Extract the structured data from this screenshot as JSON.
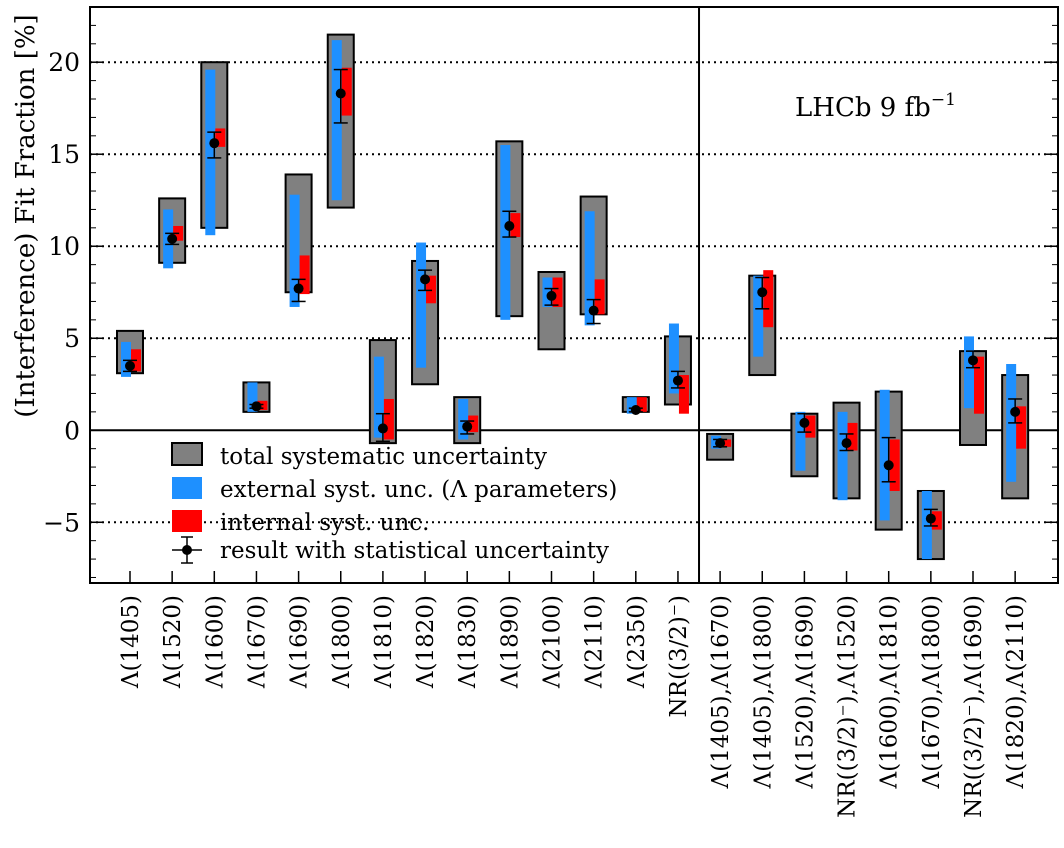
{
  "chart_data": {
    "type": "errorbar-box",
    "ylabel": "(Interference) Fit Fraction [%]",
    "ylim": [
      -8.3,
      23
    ],
    "yticks": [
      -5,
      0,
      5,
      10,
      15,
      20
    ],
    "ytick_labels": [
      "−5",
      "0",
      "5",
      "10",
      "15",
      "20"
    ],
    "grid_y": [
      -5,
      5,
      10,
      15,
      20
    ],
    "zero_line": 0,
    "separator_after_index": 13,
    "annotation": {
      "text": "LHCb 9 fb",
      "sup": "−1"
    },
    "legend": [
      {
        "key": "total",
        "label": "total systematic uncertainty",
        "color": "#808080"
      },
      {
        "key": "external",
        "label": "external syst. unc. (Λ parameters)",
        "color": "#1e90ff"
      },
      {
        "key": "internal",
        "label": "internal syst. unc.",
        "color": "#ff0000"
      },
      {
        "key": "stat",
        "label": "result with statistical uncertainty",
        "color": "#000000"
      }
    ],
    "colors": {
      "total": "#808080",
      "external": "#1e90ff",
      "internal": "#ff0000",
      "point": "#000000"
    },
    "categories": [
      {
        "label": "Λ(1405)",
        "value": 3.5,
        "stat": [
          3.2,
          3.8
        ],
        "total": [
          3.1,
          5.4
        ],
        "external": [
          2.9,
          4.8
        ],
        "internal": [
          3.2,
          4.4
        ]
      },
      {
        "label": "Λ(1520)",
        "value": 10.4,
        "stat": [
          10.1,
          10.7
        ],
        "total": [
          9.1,
          12.6
        ],
        "external": [
          8.8,
          12.0
        ],
        "internal": [
          10.3,
          11.1
        ]
      },
      {
        "label": "Λ(1600)",
        "value": 15.6,
        "stat": [
          14.8,
          16.2
        ],
        "total": [
          11.0,
          20.0
        ],
        "external": [
          10.6,
          19.6
        ],
        "internal": [
          15.4,
          16.4
        ]
      },
      {
        "label": "Λ(1670)",
        "value": 1.3,
        "stat": [
          1.2,
          1.4
        ],
        "total": [
          1.0,
          2.6
        ],
        "external": [
          1.0,
          2.6
        ],
        "internal": [
          1.1,
          1.6
        ]
      },
      {
        "label": "Λ(1690)",
        "value": 7.7,
        "stat": [
          7.0,
          8.2
        ],
        "total": [
          7.5,
          13.9
        ],
        "external": [
          6.7,
          12.8
        ],
        "internal": [
          7.4,
          9.5
        ]
      },
      {
        "label": "Λ(1800)",
        "value": 18.3,
        "stat": [
          16.7,
          19.6
        ],
        "total": [
          12.1,
          21.5
        ],
        "external": [
          12.5,
          21.2
        ],
        "internal": [
          17.1,
          19.7
        ]
      },
      {
        "label": "Λ(1810)",
        "value": 0.1,
        "stat": [
          -0.6,
          0.9
        ],
        "total": [
          -0.7,
          4.9
        ],
        "external": [
          -0.4,
          4.0
        ],
        "internal": [
          -0.5,
          1.7
        ]
      },
      {
        "label": "Λ(1820)",
        "value": 8.2,
        "stat": [
          7.6,
          8.7
        ],
        "total": [
          2.5,
          9.2
        ],
        "external": [
          3.4,
          10.2
        ],
        "internal": [
          6.9,
          8.4
        ]
      },
      {
        "label": "Λ(1830)",
        "value": 0.2,
        "stat": [
          -0.2,
          0.5
        ],
        "total": [
          -0.7,
          1.8
        ],
        "external": [
          -0.5,
          1.7
        ],
        "internal": [
          -0.1,
          0.8
        ]
      },
      {
        "label": "Λ(1890)",
        "value": 11.1,
        "stat": [
          10.5,
          11.9
        ],
        "total": [
          6.2,
          15.7
        ],
        "external": [
          6.0,
          15.5
        ],
        "internal": [
          10.5,
          11.8
        ]
      },
      {
        "label": "Λ(2100)",
        "value": 7.3,
        "stat": [
          6.8,
          7.7
        ],
        "total": [
          4.4,
          8.6
        ],
        "external": [
          6.7,
          8.3
        ],
        "internal": [
          6.7,
          8.3
        ]
      },
      {
        "label": "Λ(2110)",
        "value": 6.5,
        "stat": [
          5.8,
          7.1
        ],
        "total": [
          6.3,
          12.7
        ],
        "external": [
          5.7,
          11.9
        ],
        "internal": [
          6.3,
          8.2
        ]
      },
      {
        "label": "Λ(2350)",
        "value": 1.1,
        "stat": [
          1.0,
          1.2
        ],
        "total": [
          1.0,
          1.8
        ],
        "external": [
          0.9,
          1.8
        ],
        "internal": [
          1.0,
          1.8
        ]
      },
      {
        "label": "NR((3/2)⁻)",
        "value": 2.7,
        "stat": [
          2.3,
          3.2
        ],
        "total": [
          1.4,
          5.1
        ],
        "external": [
          2.0,
          5.8
        ],
        "internal": [
          0.9,
          3.0
        ]
      },
      {
        "label": "Λ(1405),Λ(1670)",
        "value": -0.7,
        "stat": [
          -0.9,
          -0.5
        ],
        "total": [
          -1.6,
          -0.2
        ],
        "external": [
          -1.0,
          -0.3
        ],
        "internal": [
          -0.9,
          -0.5
        ]
      },
      {
        "label": "Λ(1405),Λ(1800)",
        "value": 7.5,
        "stat": [
          6.6,
          8.3
        ],
        "total": [
          3.0,
          8.4
        ],
        "external": [
          4.0,
          8.4
        ],
        "internal": [
          5.6,
          8.7
        ]
      },
      {
        "label": "Λ(1520),Λ(1690)",
        "value": 0.4,
        "stat": [
          -0.1,
          0.9
        ],
        "total": [
          -2.5,
          0.9
        ],
        "external": [
          -2.2,
          1.0
        ],
        "internal": [
          -0.4,
          0.8
        ]
      },
      {
        "label": "NR((3/2)⁻),Λ(1520)",
        "value": -0.7,
        "stat": [
          -1.1,
          -0.2
        ],
        "total": [
          -3.7,
          1.5
        ],
        "external": [
          -3.8,
          1.0
        ],
        "internal": [
          -1.1,
          0.4
        ]
      },
      {
        "label": "Λ(1600),Λ(1810)",
        "value": -1.9,
        "stat": [
          -2.8,
          -0.4
        ],
        "total": [
          -5.4,
          2.1
        ],
        "external": [
          -4.9,
          2.2
        ],
        "internal": [
          -3.3,
          -0.5
        ]
      },
      {
        "label": "Λ(1670),Λ(1800)",
        "value": -4.8,
        "stat": [
          -5.2,
          -4.3
        ],
        "total": [
          -7.0,
          -3.3
        ],
        "external": [
          -7.0,
          -3.3
        ],
        "internal": [
          -5.4,
          -4.4
        ]
      },
      {
        "label": "NR((3/2)⁻),Λ(1690)",
        "value": 3.8,
        "stat": [
          3.4,
          4.3
        ],
        "total": [
          -0.8,
          4.3
        ],
        "external": [
          1.2,
          5.1
        ],
        "internal": [
          0.9,
          4.0
        ]
      },
      {
        "label": "Λ(1820),Λ(2110)",
        "value": 1.0,
        "stat": [
          0.4,
          1.7
        ],
        "total": [
          -3.7,
          3.0
        ],
        "external": [
          -2.8,
          3.6
        ],
        "internal": [
          -1.0,
          1.3
        ]
      }
    ]
  }
}
